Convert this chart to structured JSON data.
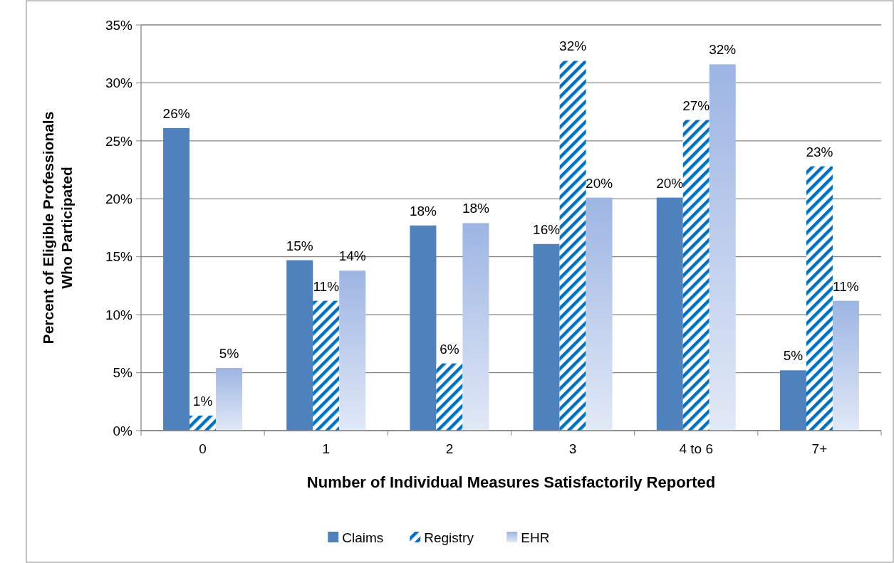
{
  "chart_data": {
    "type": "bar",
    "xlabel": "Number of Individual Measures Satisfactorily Reported",
    "ylabel": "Percent of Eligible Professionals\nWho Participated",
    "categories": [
      "0",
      "1",
      "2",
      "3",
      "4 to 6",
      "7+"
    ],
    "series": [
      {
        "name": "Claims",
        "color": "#4f81bd",
        "values": [
          26.1,
          14.7,
          17.7,
          16.1,
          20.1,
          5.2
        ],
        "value_labels": [
          "26%",
          "15%",
          "18%",
          "16%",
          "20%",
          "5%"
        ]
      },
      {
        "name": "Registry",
        "color": "#0070c0",
        "values": [
          1.3,
          11.2,
          5.8,
          31.9,
          26.8,
          22.8
        ],
        "value_labels": [
          "1%",
          "11%",
          "6%",
          "32%",
          "27%",
          "23%"
        ]
      },
      {
        "name": "EHR",
        "color": "#9db5e3",
        "values": [
          5.4,
          13.8,
          17.9,
          20.1,
          31.6,
          11.2
        ],
        "value_labels": [
          "5%",
          "14%",
          "18%",
          "20%",
          "32%",
          "11%"
        ]
      }
    ],
    "ylim": [
      0,
      35
    ],
    "yticks": [
      {
        "value": 0,
        "label": "0%"
      },
      {
        "value": 5,
        "label": "5%"
      },
      {
        "value": 10,
        "label": "10%"
      },
      {
        "value": 15,
        "label": "15%"
      },
      {
        "value": 20,
        "label": "20%"
      },
      {
        "value": 25,
        "label": "25%"
      },
      {
        "value": 30,
        "label": "30%"
      },
      {
        "value": 35,
        "label": "35%"
      }
    ],
    "grid": "y",
    "legend": "bottom"
  }
}
